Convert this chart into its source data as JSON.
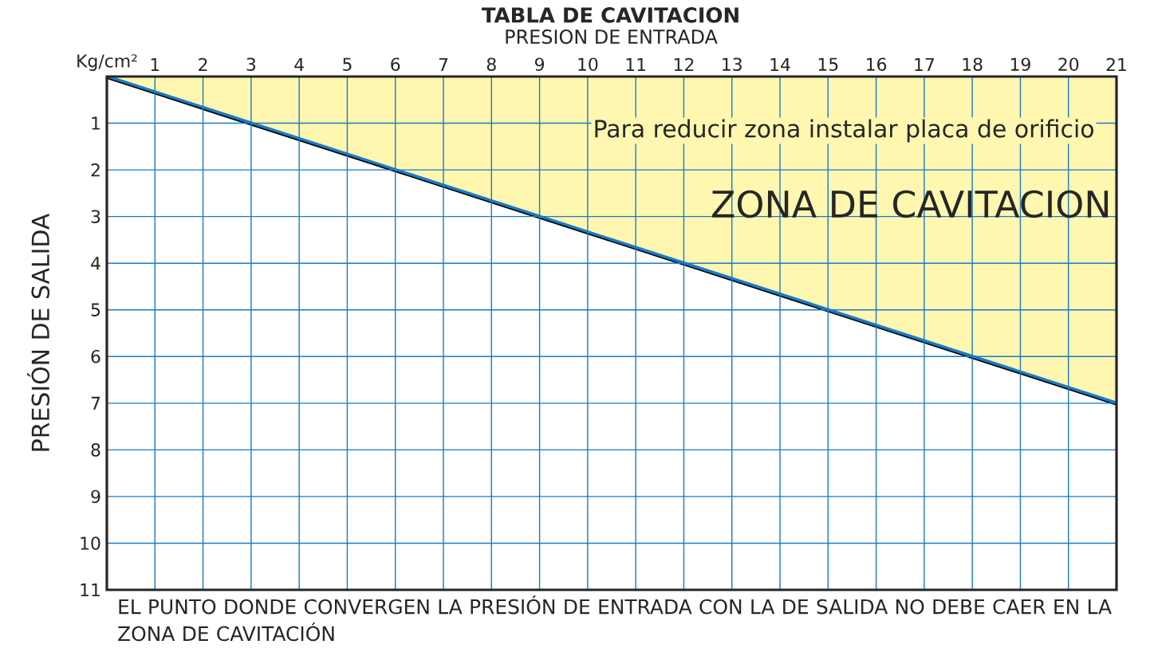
{
  "chart_data": {
    "type": "area",
    "title": "TABLA DE CAVITACION",
    "xlabel": "PRESION DE ENTRADA",
    "ylabel": "PRESIÓN DE SALIDA",
    "xlim": [
      0,
      21
    ],
    "xticks": [
      {
        "value": 0,
        "label": "Kg/cm²"
      },
      1,
      2,
      3,
      4,
      5,
      6,
      7,
      8,
      9,
      10,
      11,
      12,
      13,
      14,
      15,
      16,
      17,
      18,
      19,
      20,
      21
    ],
    "ylim": [
      11,
      0
    ],
    "yticks": [
      1,
      2,
      3,
      4,
      5,
      6,
      7,
      8,
      9,
      10,
      11
    ],
    "grid": true,
    "series": [
      {
        "x": [
          0,
          21
        ],
        "values": [
          0,
          7
        ],
        "color": "#fff6b0"
      }
    ],
    "annotations": [
      "Para reducir zona instalar placa de orificio",
      "ZONA DE CAVITACION",
      "EL PUNTO DONDE CONVERGEN LA PRESIÓN DE ENTRADA CON LA DE SALIDA NO DEBE CAER EN LA ZONA DE CAVITACIÓN"
    ]
  }
}
